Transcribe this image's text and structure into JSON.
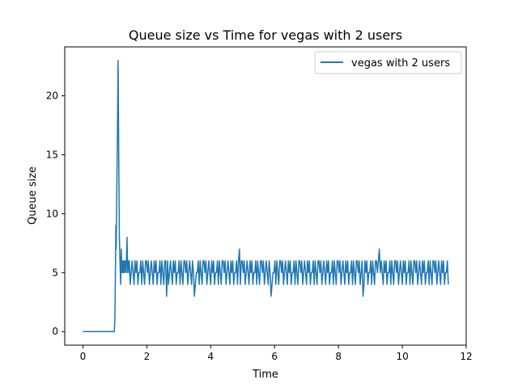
{
  "chart_data": {
    "type": "line",
    "title": "Queue size vs Time for vegas with 2 users",
    "xlabel": "Time",
    "ylabel": "Queue size",
    "xlim": [
      -0.57,
      12.0
    ],
    "ylim": [
      -1.15,
      24.15
    ],
    "xticks": [
      0,
      2,
      4,
      6,
      8,
      10,
      12
    ],
    "yticks": [
      0,
      5,
      10,
      15,
      20
    ],
    "xtick_labels": [
      "0",
      "2",
      "4",
      "6",
      "8",
      "10",
      "12"
    ],
    "ytick_labels": [
      "0",
      "5",
      "10",
      "15",
      "20"
    ],
    "grid": false,
    "legend_position": "top-right",
    "series": [
      {
        "name": "vegas with 2 users",
        "color": "#1f77b4",
        "x": [
          0,
          0.98,
          1.0,
          1.02,
          1.03,
          1.04,
          1.06,
          1.08,
          1.1,
          1.12,
          1.14,
          1.16,
          1.18,
          1.2,
          1.22,
          1.24,
          1.26,
          1.28,
          1.3,
          1.32,
          1.35,
          1.38,
          1.4,
          1.42,
          1.45
        ],
        "values": [
          0,
          0,
          1,
          6,
          9,
          7,
          12,
          17,
          23,
          15,
          8,
          6,
          4,
          7,
          5,
          6,
          5,
          6,
          5,
          6,
          5,
          8,
          5,
          6,
          5
        ],
        "oscillation": {
          "x_start": 1.45,
          "x_end": 11.45,
          "step": 0.03,
          "pattern": [
            6,
            4,
            5,
            6,
            5,
            4,
            6,
            5,
            6,
            4,
            5,
            5,
            6,
            4,
            6,
            5,
            4,
            6,
            6,
            5
          ],
          "spikes": [
            [
              2.63,
              3
            ],
            [
              3.48,
              3
            ],
            [
              4.9,
              7
            ],
            [
              5.88,
              3
            ],
            [
              8.78,
              3
            ],
            [
              9.27,
              7
            ]
          ]
        }
      }
    ]
  }
}
